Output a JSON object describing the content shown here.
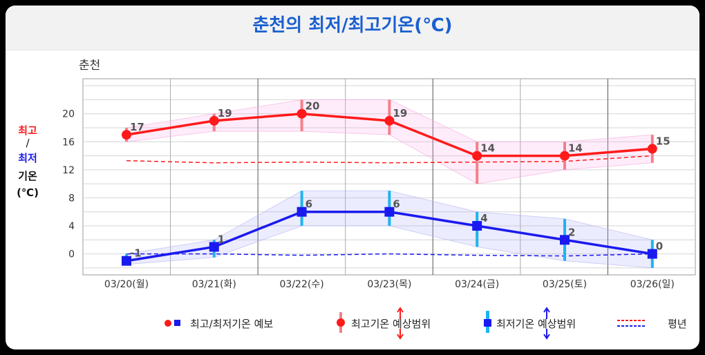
{
  "title": "춘천의 최저/최고기온(℃)",
  "city_label": "춘천",
  "yaxis_label": {
    "high": "최고",
    "slash": "/",
    "low": "최저",
    "temp": "기온",
    "unit": "(℃)"
  },
  "colors": {
    "high": "#ff1a1a",
    "low": "#1a1aee",
    "high_range": "#f5808a",
    "low_range": "#1eb4f0",
    "title": "#1a5fd0"
  },
  "legend": {
    "forecast": "최고/최저기온 예보",
    "high_range": "최고기온 예상범위",
    "low_range": "최저기온 예상범위",
    "normal": "평년"
  },
  "chart_data": {
    "type": "line",
    "categories": [
      "03/20(월)",
      "03/21(화)",
      "03/22(수)",
      "03/23(목)",
      "03/24(금)",
      "03/25(토)",
      "03/26(일)"
    ],
    "ylim": [
      -3,
      25
    ],
    "yticks": [
      0,
      4,
      8,
      12,
      16,
      20
    ],
    "grid": true,
    "series": [
      {
        "name": "최고기온",
        "key": "high",
        "values": [
          17,
          19,
          20,
          19,
          14,
          14,
          15
        ],
        "labels": [
          "17",
          "19",
          "20",
          "19",
          "14",
          "14",
          "15"
        ]
      },
      {
        "name": "최저기온",
        "key": "low",
        "values": [
          -1,
          1,
          6,
          6,
          4,
          2,
          0
        ],
        "labels": [
          "-1",
          "1",
          "6",
          "6",
          "4",
          "2",
          "0"
        ]
      }
    ],
    "high_range": {
      "low": [
        16,
        17.5,
        17.5,
        17,
        10,
        12,
        13
      ],
      "high": [
        18,
        20,
        22,
        22,
        16,
        16,
        17
      ]
    },
    "low_range": {
      "low": [
        -1.5,
        -0.5,
        4,
        4,
        1,
        -1,
        -2
      ],
      "high": [
        0,
        2,
        9,
        9,
        6,
        5,
        2
      ]
    },
    "high_normal": [
      13.3,
      13.0,
      13.1,
      13.0,
      13.1,
      13.2,
      14.0
    ],
    "low_normal": [
      0.0,
      0.0,
      -0.2,
      0.0,
      -0.2,
      -0.3,
      0.0
    ]
  }
}
